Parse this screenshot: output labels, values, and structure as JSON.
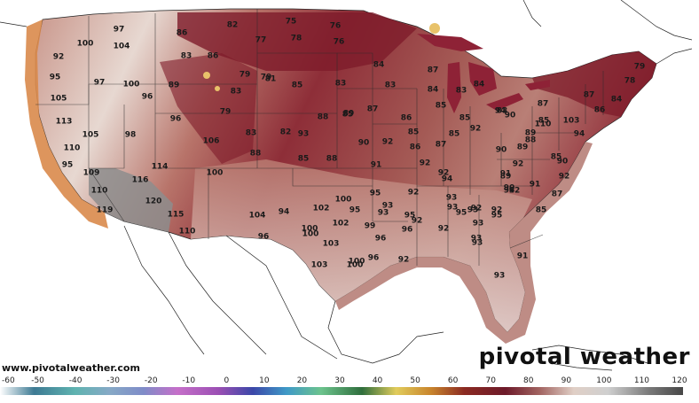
{
  "map": {
    "watermark_url": "www.pivotalweather.com",
    "brand": "pivotal weather",
    "colors": {
      "ocean": "#ffffff",
      "mexico_land": "#ffffff",
      "hot_dark": "#7e1b2a",
      "hot_mid": "#a8534f",
      "warm": "#c9968b",
      "mild": "#e6d5cf",
      "very_hot_gray": "#8c8c8c",
      "coastal_orange": "#d98a4b",
      "yellow_spots": "#e8c26a"
    },
    "values": [
      {
        "t": "97"
      },
      {
        "t": "104"
      },
      {
        "t": "92"
      },
      {
        "t": "100"
      },
      {
        "t": "97"
      },
      {
        "t": "100"
      },
      {
        "t": "95"
      },
      {
        "t": "105"
      },
      {
        "t": "96"
      },
      {
        "t": "89"
      },
      {
        "t": "86"
      },
      {
        "t": "83"
      },
      {
        "t": "86"
      },
      {
        "t": "82"
      },
      {
        "t": "79"
      },
      {
        "t": "77"
      },
      {
        "t": "78"
      },
      {
        "t": "75"
      },
      {
        "t": "76"
      },
      {
        "t": "76"
      },
      {
        "t": "79"
      },
      {
        "t": "83"
      },
      {
        "t": "81"
      },
      {
        "t": "85"
      },
      {
        "t": "83"
      },
      {
        "t": "84"
      },
      {
        "t": "83"
      },
      {
        "t": "84"
      },
      {
        "t": "87"
      },
      {
        "t": "79"
      },
      {
        "t": "78"
      },
      {
        "t": "113"
      },
      {
        "t": "105"
      },
      {
        "t": "98"
      },
      {
        "t": "106"
      },
      {
        "t": "96"
      },
      {
        "t": "79"
      },
      {
        "t": "83"
      },
      {
        "t": "82"
      },
      {
        "t": "88"
      },
      {
        "t": "85"
      },
      {
        "t": "89"
      },
      {
        "t": "87"
      },
      {
        "t": "86"
      },
      {
        "t": "85"
      },
      {
        "t": "83"
      },
      {
        "t": "84"
      },
      {
        "t": "85"
      },
      {
        "t": "87"
      },
      {
        "t": "83"
      },
      {
        "t": "85"
      },
      {
        "t": "87"
      },
      {
        "t": "86"
      },
      {
        "t": "84"
      },
      {
        "t": "110"
      },
      {
        "t": "95"
      },
      {
        "t": "109"
      },
      {
        "t": "110"
      },
      {
        "t": "114"
      },
      {
        "t": "116"
      },
      {
        "t": "100"
      },
      {
        "t": "88"
      },
      {
        "t": "93"
      },
      {
        "t": "85"
      },
      {
        "t": "88"
      },
      {
        "t": "90"
      },
      {
        "t": "92"
      },
      {
        "t": "91"
      },
      {
        "t": "85"
      },
      {
        "t": "86"
      },
      {
        "t": "87"
      },
      {
        "t": "85"
      },
      {
        "t": "92"
      },
      {
        "t": "94"
      },
      {
        "t": "90"
      },
      {
        "t": "110"
      },
      {
        "t": "103"
      },
      {
        "t": "94"
      },
      {
        "t": "89"
      },
      {
        "t": "89"
      },
      {
        "t": "92"
      },
      {
        "t": "89"
      },
      {
        "t": "90"
      },
      {
        "t": "92"
      },
      {
        "t": "91"
      },
      {
        "t": "87"
      },
      {
        "t": "90"
      },
      {
        "t": "88"
      },
      {
        "t": "92"
      },
      {
        "t": "94"
      },
      {
        "t": "93"
      },
      {
        "t": "92"
      },
      {
        "t": "93"
      },
      {
        "t": "93"
      },
      {
        "t": "85"
      },
      {
        "t": "91"
      },
      {
        "t": "94"
      },
      {
        "t": "93"
      },
      {
        "t": "119"
      },
      {
        "t": "120"
      },
      {
        "t": "115"
      },
      {
        "t": "110"
      },
      {
        "t": "104"
      },
      {
        "t": "96"
      },
      {
        "t": "94"
      },
      {
        "t": "100"
      },
      {
        "t": "102"
      },
      {
        "t": "95"
      },
      {
        "t": "100"
      },
      {
        "t": "102"
      },
      {
        "t": "103"
      },
      {
        "t": "99"
      },
      {
        "t": "100"
      },
      {
        "t": "95"
      },
      {
        "t": "96"
      },
      {
        "t": "92"
      },
      {
        "t": "92"
      },
      {
        "t": "95"
      },
      {
        "t": "93"
      },
      {
        "t": "92"
      },
      {
        "t": "92"
      },
      {
        "t": "92"
      },
      {
        "t": "93"
      },
      {
        "t": "93"
      },
      {
        "t": "93"
      },
      {
        "t": "96"
      },
      {
        "t": "100"
      },
      {
        "t": "103"
      },
      {
        "t": "100"
      },
      {
        "t": "96"
      },
      {
        "t": "95"
      },
      {
        "t": "92"
      },
      {
        "t": "95"
      },
      {
        "t": "90"
      },
      {
        "t": "85"
      },
      {
        "t": "92"
      },
      {
        "t": "91"
      },
      {
        "t": "93"
      }
    ]
  },
  "colorbar": {
    "ticks": [
      "-60",
      "-50",
      "-40",
      "-30",
      "-20",
      "-10",
      "0",
      "10",
      "20",
      "30",
      "40",
      "50",
      "60",
      "70",
      "80",
      "90",
      "100",
      "110",
      "120"
    ],
    "stops": [
      "#ffffff",
      "#3d7a93",
      "#5fb3b0",
      "#86a9c6",
      "#7f8cc8",
      "#c56fc9",
      "#9b4fb3",
      "#3b47a8",
      "#3f9ac7",
      "#6cc38d",
      "#2f6e3c",
      "#e1cc5c",
      "#c9862d",
      "#8b2a22",
      "#6d1a2a",
      "#a26461",
      "#e0cfc6",
      "#cfcfcf",
      "#7a7a7a",
      "#474747"
    ]
  }
}
